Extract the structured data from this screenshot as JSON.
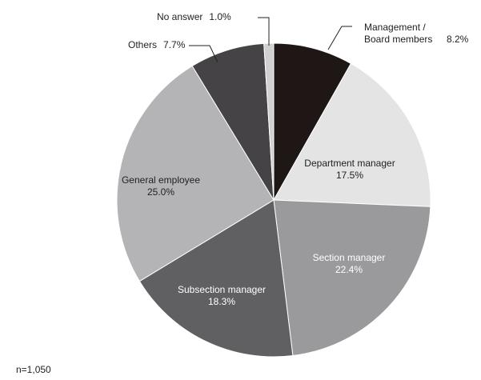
{
  "chart_data": {
    "type": "pie",
    "categories": [
      "Management / Board members",
      "Department manager",
      "Section manager",
      "Subsection manager",
      "General employee",
      "Others",
      "No answer"
    ],
    "values": [
      8.2,
      17.5,
      22.4,
      18.3,
      25.0,
      7.7,
      1.0
    ],
    "value_labels": [
      "8.2%",
      "17.5%",
      "22.4%",
      "18.3%",
      "25.0%",
      "7.7%",
      "1.0%"
    ],
    "colors": [
      "#1e1716",
      "#e4e4e4",
      "#9a9a9c",
      "#606062",
      "#b4b4b6",
      "#454345",
      "#d0d0d0"
    ],
    "note": "n=1,050"
  }
}
